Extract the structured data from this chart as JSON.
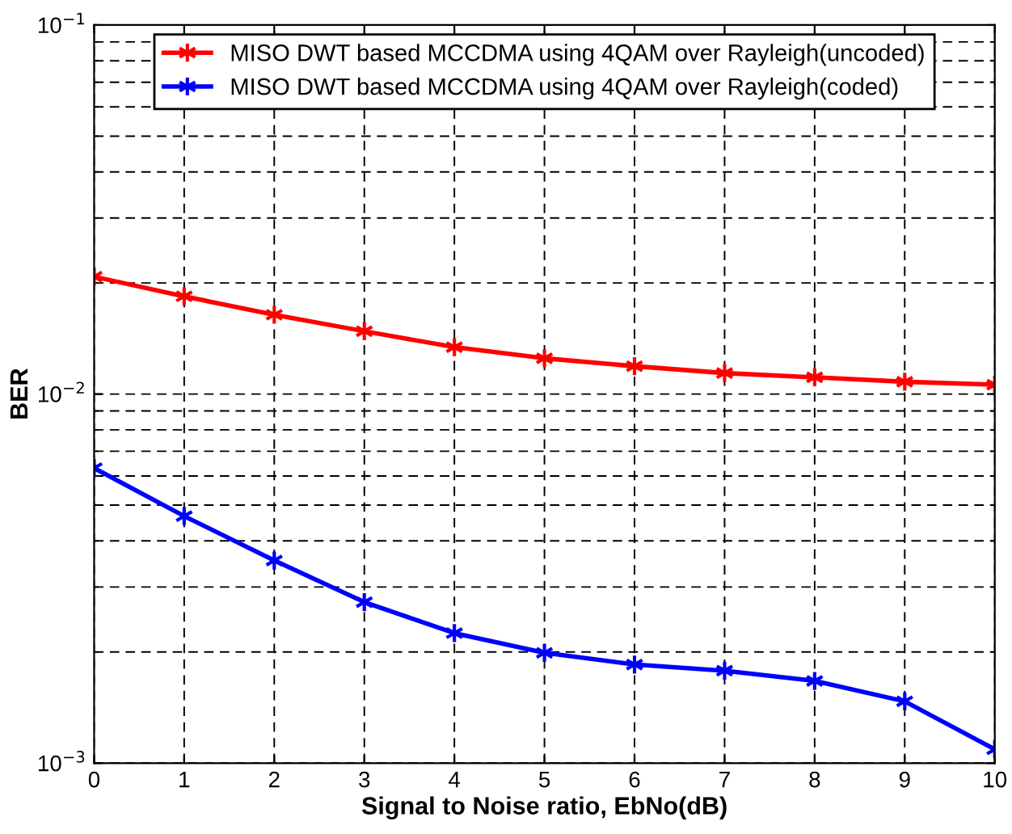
{
  "chart_data": {
    "type": "line",
    "xlabel": "Signal to Noise ratio, EbNo(dB)",
    "ylabel": "BER",
    "x": [
      0,
      1,
      2,
      3,
      4,
      5,
      6,
      7,
      8,
      9,
      10
    ],
    "series": [
      {
        "name": "MISO DWT based MCCDMA using 4QAM over Rayleigh(uncoded)",
        "color": "#ff0000",
        "values": [
          0.0208,
          0.0184,
          0.0164,
          0.0148,
          0.0134,
          0.0125,
          0.0119,
          0.0114,
          0.0111,
          0.0108,
          0.0106
        ]
      },
      {
        "name": "MISO DWT based MCCDMA using 4QAM over Rayleigh(coded)",
        "color": "#0000ff",
        "values": [
          0.0063,
          0.00467,
          0.00354,
          0.00273,
          0.00225,
          0.00199,
          0.00185,
          0.00178,
          0.00167,
          0.00147,
          0.00109
        ]
      }
    ],
    "log": "y",
    "xlim": [
      0,
      10
    ],
    "ylim": [
      0.001,
      0.1
    ],
    "xticks": [
      0,
      1,
      2,
      3,
      4,
      5,
      6,
      7,
      8,
      9,
      10
    ],
    "yticks": [
      {
        "value": 0.001,
        "label": "10$^{−3}$"
      },
      {
        "value": 0.01,
        "label": "10$^{−2}$"
      },
      {
        "value": 0.1,
        "label": "10$^{−1}$"
      }
    ],
    "grid": true,
    "legend": "top",
    "marker": "cross",
    "line_style": "solid"
  }
}
